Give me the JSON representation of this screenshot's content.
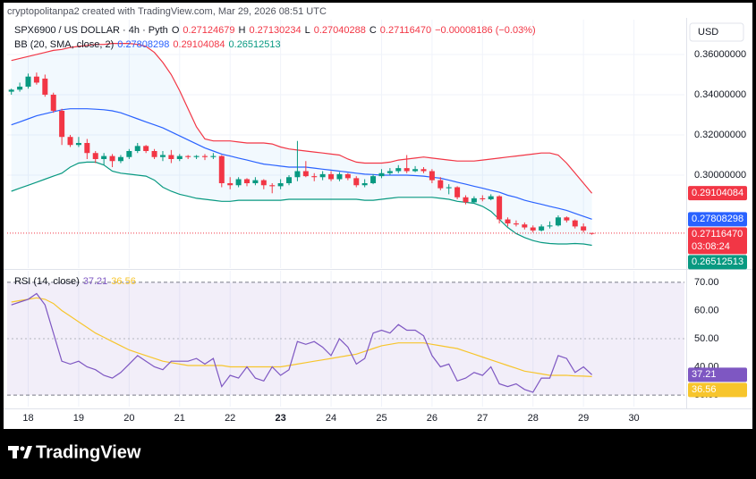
{
  "header": {
    "credit": "cryptopolitanpa2 created with TradingView.com, Mar 29, 2026 08:51 UTC",
    "currency": "USD",
    "brand": "TradingView"
  },
  "chart_data": [
    {
      "type": "candlestick",
      "title": "SPX6900 / US DOLLAR · 4h · Pyth",
      "ohlc_keys": [
        "O",
        "H",
        "L",
        "C"
      ],
      "close_label": "0.27116470",
      "change": "−0.00008186 (−0.03%)",
      "countdown": "03:08:24",
      "up_color": "#089981",
      "down_color": "#f23645",
      "xlim": [
        -0.5,
        80
      ],
      "ylim": [
        0.2538,
        0.3773
      ],
      "grid": true,
      "yticks": [
        {
          "value": 0.36,
          "label": "0.36000000"
        },
        {
          "value": 0.34,
          "label": "0.34000000"
        },
        {
          "value": 0.32,
          "label": "0.32000000"
        },
        {
          "value": 0.3,
          "label": "0.30000000"
        }
      ],
      "values": [
        [
          0.3415,
          0.343,
          0.34,
          0.3425
        ],
        [
          0.3425,
          0.346,
          0.3415,
          0.344
        ],
        [
          0.344,
          0.3505,
          0.343,
          0.349
        ],
        [
          0.349,
          0.351,
          0.345,
          0.346
        ],
        [
          0.348,
          0.35,
          0.339,
          0.34
        ],
        [
          0.34,
          0.341,
          0.331,
          0.332
        ],
        [
          0.332,
          0.333,
          0.315,
          0.319
        ],
        [
          0.319,
          0.32,
          0.314,
          0.315
        ],
        [
          0.315,
          0.319,
          0.314,
          0.316
        ],
        [
          0.316,
          0.318,
          0.308,
          0.311
        ],
        [
          0.311,
          0.312,
          0.306,
          0.308
        ],
        [
          0.308,
          0.311,
          0.305,
          0.3095
        ],
        [
          0.3095,
          0.3105,
          0.304,
          0.307
        ],
        [
          0.307,
          0.31,
          0.306,
          0.309
        ],
        [
          0.309,
          0.313,
          0.308,
          0.312
        ],
        [
          0.312,
          0.316,
          0.311,
          0.3145
        ],
        [
          0.3145,
          0.315,
          0.311,
          0.312
        ],
        [
          0.312,
          0.313,
          0.308,
          0.309
        ],
        [
          0.309,
          0.312,
          0.307,
          0.31
        ],
        [
          0.31,
          0.3125,
          0.306,
          0.308
        ],
        [
          0.308,
          0.3105,
          0.307,
          0.3095
        ],
        [
          0.3095,
          0.31,
          0.308,
          0.309
        ],
        [
          0.309,
          0.31,
          0.308,
          0.3095
        ],
        [
          0.3095,
          0.3105,
          0.3075,
          0.309
        ],
        [
          0.309,
          0.311,
          0.308,
          0.3095
        ],
        [
          0.3095,
          0.31,
          0.294,
          0.296
        ],
        [
          0.296,
          0.299,
          0.293,
          0.295
        ],
        [
          0.295,
          0.299,
          0.294,
          0.298
        ],
        [
          0.298,
          0.2985,
          0.2945,
          0.296
        ],
        [
          0.296,
          0.299,
          0.295,
          0.2975
        ],
        [
          0.2975,
          0.298,
          0.293,
          0.295
        ],
        [
          0.295,
          0.296,
          0.291,
          0.2945
        ],
        [
          0.2945,
          0.298,
          0.293,
          0.296
        ],
        [
          0.296,
          0.3,
          0.295,
          0.299
        ],
        [
          0.299,
          0.317,
          0.297,
          0.302
        ],
        [
          0.302,
          0.307,
          0.299,
          0.2995
        ],
        [
          0.2995,
          0.301,
          0.297,
          0.299
        ],
        [
          0.299,
          0.302,
          0.2975,
          0.3005
        ],
        [
          0.3005,
          0.302,
          0.297,
          0.298
        ],
        [
          0.298,
          0.3015,
          0.297,
          0.3005
        ],
        [
          0.3005,
          0.301,
          0.2975,
          0.2985
        ],
        [
          0.2985,
          0.2995,
          0.294,
          0.295
        ],
        [
          0.295,
          0.298,
          0.294,
          0.296
        ],
        [
          0.296,
          0.3005,
          0.2955,
          0.2995
        ],
        [
          0.2995,
          0.303,
          0.2985,
          0.301
        ],
        [
          0.301,
          0.3035,
          0.3,
          0.302
        ],
        [
          0.302,
          0.305,
          0.301,
          0.3035
        ],
        [
          0.3035,
          0.31,
          0.301,
          0.302
        ],
        [
          0.302,
          0.3045,
          0.3015,
          0.303
        ],
        [
          0.303,
          0.304,
          0.301,
          0.302
        ],
        [
          0.302,
          0.303,
          0.296,
          0.2975
        ],
        [
          0.2975,
          0.299,
          0.2925,
          0.2935
        ],
        [
          0.2935,
          0.2955,
          0.2905,
          0.294
        ],
        [
          0.294,
          0.2945,
          0.288,
          0.289
        ],
        [
          0.289,
          0.29,
          0.2855,
          0.2865
        ],
        [
          0.2865,
          0.2895,
          0.286,
          0.2885
        ],
        [
          0.2885,
          0.29,
          0.287,
          0.288
        ],
        [
          0.288,
          0.2905,
          0.2875,
          0.2895
        ],
        [
          0.2895,
          0.29,
          0.276,
          0.278
        ],
        [
          0.278,
          0.279,
          0.2745,
          0.276
        ],
        [
          0.276,
          0.2775,
          0.2745,
          0.2755
        ],
        [
          0.2755,
          0.2765,
          0.273,
          0.274
        ],
        [
          0.274,
          0.275,
          0.2715,
          0.2725
        ],
        [
          0.2725,
          0.2755,
          0.272,
          0.2745
        ],
        [
          0.2745,
          0.277,
          0.2735,
          0.275
        ],
        [
          0.275,
          0.28,
          0.2745,
          0.279
        ],
        [
          0.279,
          0.2795,
          0.2765,
          0.2775
        ],
        [
          0.2775,
          0.278,
          0.2735,
          0.2745
        ],
        [
          0.2745,
          0.276,
          0.2715,
          0.2725
        ],
        [
          0.27124679,
          0.27130234,
          0.27040288,
          0.2711647
        ]
      ],
      "indicator": "BB (20, SMA, close, 2)",
      "band_fill": "rgba(33,150,243,0.06)",
      "series": [
        {
          "color": "#f23645",
          "values": [
            0.357,
            0.358,
            0.359,
            0.36,
            0.361,
            0.362,
            0.3625,
            0.3635,
            0.364,
            0.3645,
            0.365,
            0.365,
            0.3655,
            0.3655,
            0.3655,
            0.365,
            0.364,
            0.361,
            0.356,
            0.35,
            0.342,
            0.333,
            0.324,
            0.318,
            0.317,
            0.317,
            0.317,
            0.3165,
            0.316,
            0.316,
            0.316,
            0.3155,
            0.314,
            0.313,
            0.3125,
            0.312,
            0.3115,
            0.311,
            0.3105,
            0.31,
            0.308,
            0.3065,
            0.306,
            0.306,
            0.306,
            0.3065,
            0.3075,
            0.308,
            0.3085,
            0.309,
            0.3085,
            0.308,
            0.3075,
            0.307,
            0.307,
            0.307,
            0.3075,
            0.308,
            0.3085,
            0.309,
            0.3095,
            0.31,
            0.3105,
            0.311,
            0.311,
            0.31,
            0.306,
            0.301,
            0.296,
            0.29104084
          ]
        },
        {
          "color": "#2962ff",
          "values": [
            0.325,
            0.3265,
            0.328,
            0.3295,
            0.3305,
            0.3315,
            0.3325,
            0.333,
            0.333,
            0.333,
            0.3328,
            0.3325,
            0.332,
            0.331,
            0.3295,
            0.328,
            0.3265,
            0.325,
            0.3235,
            0.3215,
            0.3195,
            0.3175,
            0.3155,
            0.3135,
            0.312,
            0.3105,
            0.3095,
            0.3085,
            0.3075,
            0.3065,
            0.3055,
            0.305,
            0.3045,
            0.304,
            0.304,
            0.304,
            0.3035,
            0.303,
            0.3025,
            0.302,
            0.3015,
            0.301,
            0.3005,
            0.3003,
            0.3,
            0.3,
            0.3,
            0.3,
            0.2998,
            0.2995,
            0.299,
            0.2985,
            0.2975,
            0.2965,
            0.2955,
            0.2945,
            0.2935,
            0.2925,
            0.2915,
            0.29,
            0.289,
            0.2875,
            0.2865,
            0.2855,
            0.2845,
            0.2835,
            0.2825,
            0.281,
            0.2795,
            0.27808298
          ]
        },
        {
          "color": "#089981",
          "values": [
            0.292,
            0.2935,
            0.295,
            0.2965,
            0.298,
            0.2995,
            0.301,
            0.304,
            0.306,
            0.3065,
            0.3065,
            0.305,
            0.302,
            0.301,
            0.3005,
            0.3,
            0.2995,
            0.2975,
            0.294,
            0.292,
            0.2905,
            0.2895,
            0.2885,
            0.288,
            0.2875,
            0.287,
            0.287,
            0.2875,
            0.2875,
            0.2875,
            0.2875,
            0.2875,
            0.2875,
            0.288,
            0.288,
            0.288,
            0.288,
            0.288,
            0.288,
            0.288,
            0.288,
            0.288,
            0.2875,
            0.2875,
            0.288,
            0.2885,
            0.289,
            0.289,
            0.289,
            0.289,
            0.289,
            0.2885,
            0.288,
            0.287,
            0.2865,
            0.286,
            0.2845,
            0.282,
            0.278,
            0.274,
            0.271,
            0.269,
            0.2675,
            0.2665,
            0.266,
            0.2658,
            0.2658,
            0.266,
            0.2658,
            0.26512513
          ]
        }
      ]
    },
    {
      "type": "line",
      "title": "RSI (14, close)",
      "xlim": [
        -0.5,
        80
      ],
      "ylim": [
        25.9,
        74.1
      ],
      "grid": true,
      "band": [
        70,
        30
      ],
      "band_fill": "rgba(126,87,194,0.1)",
      "midline": 50,
      "yticks": [
        {
          "value": 70,
          "label": "70.00"
        },
        {
          "value": 60,
          "label": "60.00"
        },
        {
          "value": 50,
          "label": "50.00"
        },
        {
          "value": 40,
          "label": "40.00"
        },
        {
          "value": 30,
          "label": "30.00"
        }
      ],
      "xticks": [
        {
          "value": 2,
          "label": "18"
        },
        {
          "value": 8,
          "label": "19"
        },
        {
          "value": 14,
          "label": "20"
        },
        {
          "value": 20,
          "label": "21"
        },
        {
          "value": 26,
          "label": "22"
        },
        {
          "value": 32,
          "label": "23",
          "bold": true
        },
        {
          "value": 38,
          "label": "24"
        },
        {
          "value": 44,
          "label": "25"
        },
        {
          "value": 50,
          "label": "26"
        },
        {
          "value": 56,
          "label": "27"
        },
        {
          "value": 62,
          "label": "28"
        },
        {
          "value": 68,
          "label": "29"
        },
        {
          "value": 74,
          "label": "30"
        }
      ],
      "series": [
        {
          "color": "#7e57c2",
          "values": [
            62,
            63,
            64,
            66,
            62,
            52,
            42,
            41,
            42,
            40,
            39,
            37,
            36,
            38,
            41,
            44,
            42,
            40,
            39,
            42,
            42,
            42,
            43,
            41,
            43,
            33,
            37,
            36,
            40,
            36,
            35,
            40,
            37,
            39,
            49,
            48,
            49,
            47,
            44,
            50,
            47,
            41,
            43,
            52,
            53,
            52,
            55,
            53,
            53,
            51,
            44,
            40,
            41,
            35,
            36,
            38,
            37,
            40,
            34,
            33,
            34,
            32,
            31,
            36,
            36,
            44,
            43,
            38,
            40,
            37.21
          ]
        },
        {
          "color": "#f7c52c",
          "values": [
            63,
            63.5,
            64,
            64.5,
            64,
            62.5,
            60,
            58,
            56,
            54,
            52,
            50.5,
            49,
            47.5,
            46,
            45,
            44,
            43,
            42,
            41.5,
            41,
            40.5,
            40.5,
            40.5,
            40.5,
            40.5,
            40,
            40,
            40,
            40,
            40,
            40,
            40,
            40.5,
            41,
            41.5,
            42,
            42.5,
            43,
            43.5,
            44,
            44.5,
            45.5,
            46.5,
            47.5,
            48,
            48.5,
            48.5,
            48.5,
            48.5,
            48,
            47.5,
            47,
            46.5,
            45.5,
            44.5,
            43.5,
            42.5,
            41.5,
            40.5,
            39.5,
            38.5,
            38,
            37.5,
            37,
            37,
            37,
            36.8,
            36.7,
            36.56
          ]
        }
      ]
    }
  ]
}
